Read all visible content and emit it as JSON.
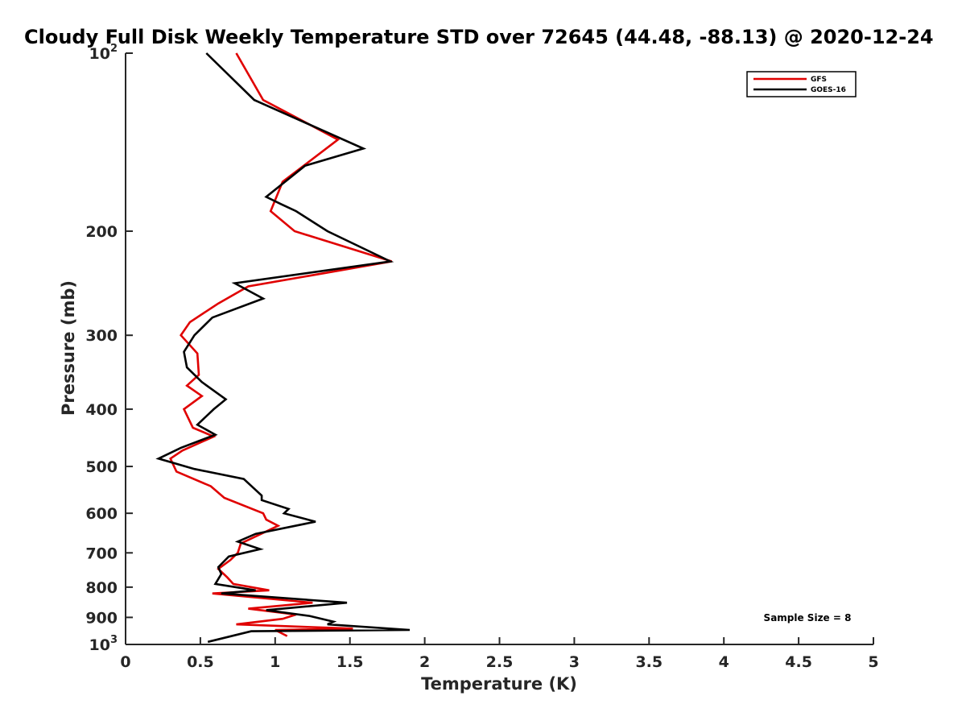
{
  "chart_data": {
    "type": "line",
    "title": "Cloudy Full Disk Weekly Temperature STD over 72645 (44.48, -88.13) @ 2020-12-24",
    "xlabel": "Temperature (K)",
    "ylabel": "Pressure (mb)",
    "xlim": [
      0,
      5
    ],
    "ylim": [
      100,
      1000
    ],
    "yscale": "log",
    "y_reversed": true,
    "grid": false,
    "legend_position": "top-right",
    "x_ticks": [
      "0",
      "0.5",
      "1",
      "1.5",
      "2",
      "2.5",
      "3",
      "3.5",
      "4",
      "4.5",
      "5"
    ],
    "x_tick_values": [
      0,
      0.5,
      1,
      1.5,
      2,
      2.5,
      3,
      3.5,
      4,
      4.5,
      5
    ],
    "y_ticks": [
      {
        "value": 100,
        "base": "10",
        "exp": "2"
      },
      {
        "value": 200,
        "label": "200"
      },
      {
        "value": 300,
        "label": "300"
      },
      {
        "value": 400,
        "label": "400"
      },
      {
        "value": 500,
        "label": "500"
      },
      {
        "value": 600,
        "label": "600"
      },
      {
        "value": 700,
        "label": "700"
      },
      {
        "value": 800,
        "label": "800"
      },
      {
        "value": 900,
        "label": "900"
      },
      {
        "value": 1000,
        "base": "10",
        "exp": "3"
      }
    ],
    "annotation": "Sample Size = 8",
    "series": [
      {
        "name": "GFS",
        "color": "#e00000",
        "points": [
          [
            0.74,
            100
          ],
          [
            0.92,
            120
          ],
          [
            1.42,
            140
          ],
          [
            1.05,
            165
          ],
          [
            0.97,
            185
          ],
          [
            1.13,
            200
          ],
          [
            1.78,
            225
          ],
          [
            0.82,
            248
          ],
          [
            0.62,
            265
          ],
          [
            0.43,
            285
          ],
          [
            0.37,
            300
          ],
          [
            0.48,
            322
          ],
          [
            0.49,
            350
          ],
          [
            0.41,
            365
          ],
          [
            0.51,
            380
          ],
          [
            0.39,
            400
          ],
          [
            0.45,
            430
          ],
          [
            0.59,
            445
          ],
          [
            0.38,
            470
          ],
          [
            0.3,
            485
          ],
          [
            0.34,
            510
          ],
          [
            0.57,
            540
          ],
          [
            0.66,
            565
          ],
          [
            0.92,
            600
          ],
          [
            0.94,
            615
          ],
          [
            1.02,
            630
          ],
          [
            0.77,
            675
          ],
          [
            0.75,
            700
          ],
          [
            0.7,
            720
          ],
          [
            0.62,
            745
          ],
          [
            0.68,
            770
          ],
          [
            0.72,
            790
          ],
          [
            0.96,
            810
          ],
          [
            0.58,
            820
          ],
          [
            1.25,
            850
          ],
          [
            0.82,
            870
          ],
          [
            1.14,
            890
          ],
          [
            1.05,
            905
          ],
          [
            0.74,
            925
          ],
          [
            1.52,
            940
          ],
          [
            1.0,
            945
          ],
          [
            1.08,
            968
          ]
        ]
      },
      {
        "name": "GOES-16",
        "color": "#000000",
        "points": [
          [
            0.54,
            100
          ],
          [
            0.86,
            120
          ],
          [
            1.59,
            145
          ],
          [
            1.2,
            155
          ],
          [
            0.94,
            175
          ],
          [
            1.04,
            180
          ],
          [
            1.14,
            185
          ],
          [
            1.35,
            200
          ],
          [
            1.77,
            225
          ],
          [
            0.73,
            245
          ],
          [
            0.92,
            260
          ],
          [
            0.58,
            280
          ],
          [
            0.46,
            300
          ],
          [
            0.39,
            320
          ],
          [
            0.41,
            340
          ],
          [
            0.51,
            360
          ],
          [
            0.67,
            385
          ],
          [
            0.59,
            400
          ],
          [
            0.48,
            425
          ],
          [
            0.6,
            442
          ],
          [
            0.37,
            465
          ],
          [
            0.22,
            485
          ],
          [
            0.46,
            505
          ],
          [
            0.79,
            525
          ],
          [
            0.91,
            560
          ],
          [
            0.91,
            570
          ],
          [
            1.09,
            590
          ],
          [
            1.06,
            600
          ],
          [
            1.27,
            620
          ],
          [
            0.87,
            650
          ],
          [
            0.75,
            670
          ],
          [
            0.9,
            690
          ],
          [
            0.69,
            710
          ],
          [
            0.62,
            740
          ],
          [
            0.64,
            760
          ],
          [
            0.6,
            790
          ],
          [
            0.87,
            810
          ],
          [
            0.64,
            820
          ],
          [
            1.48,
            850
          ],
          [
            0.94,
            875
          ],
          [
            1.23,
            895
          ],
          [
            1.39,
            915
          ],
          [
            1.35,
            925
          ],
          [
            1.9,
            945
          ],
          [
            0.84,
            950
          ],
          [
            0.55,
            990
          ]
        ]
      }
    ]
  }
}
